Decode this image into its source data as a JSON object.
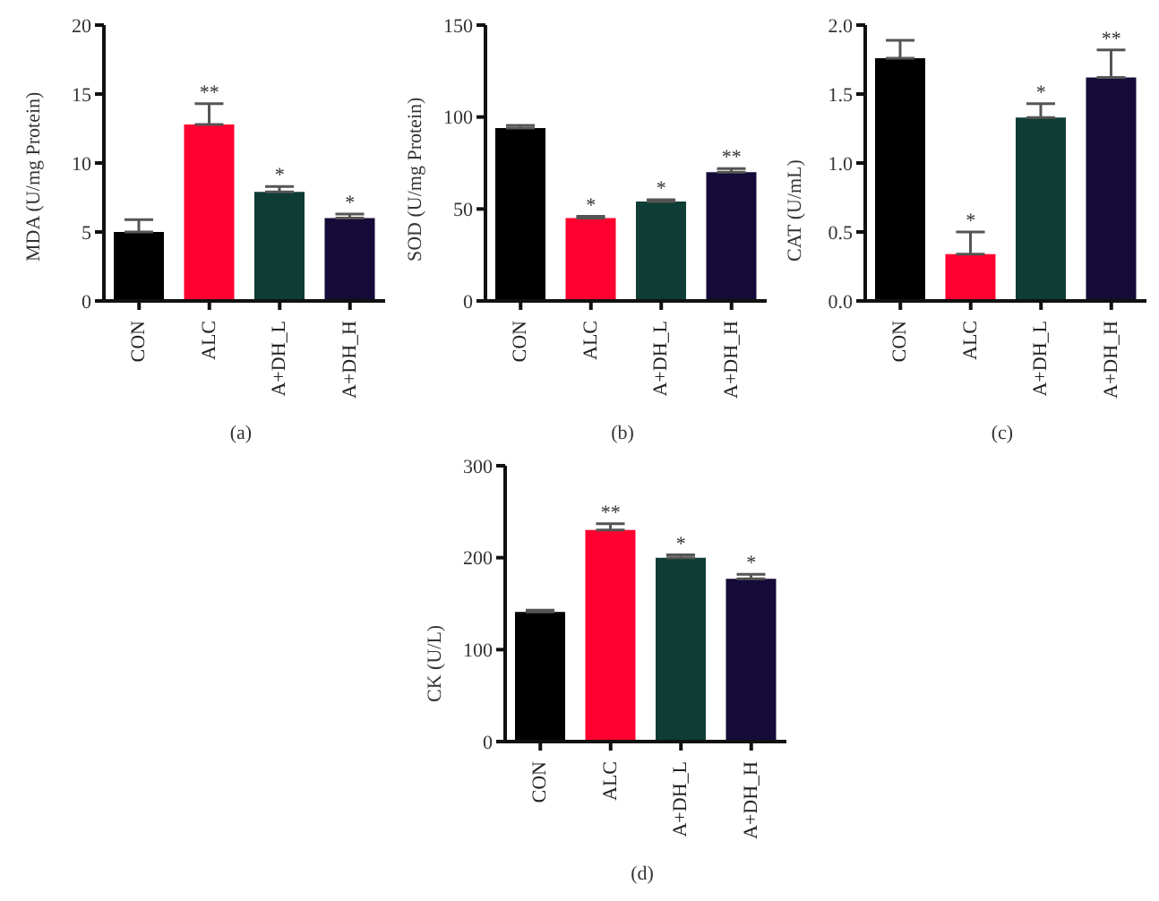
{
  "chart_data": [
    {
      "type": "bar",
      "ylabel": "MDA (U/mg Protein)",
      "categories": [
        "CON",
        "ALC",
        "A+DH_L",
        "A+DH_H"
      ],
      "values": [
        5.0,
        12.8,
        7.9,
        6.0
      ],
      "colors": [
        "#000000",
        "#ff0030",
        "#0d3d35",
        "#150a38"
      ],
      "errors": [
        [
          5.0,
          5.9
        ],
        [
          12.8,
          14.3
        ],
        [
          7.9,
          8.3
        ],
        [
          6.0,
          6.3
        ]
      ],
      "ylim": [
        0,
        20
      ],
      "yticks": [
        0,
        5,
        10,
        15,
        20
      ],
      "grid": false,
      "legend": false,
      "annotations": [
        {
          "text": "**",
          "x": "ALC",
          "y": 14.3
        },
        {
          "text": "*",
          "x": "A+DH_L",
          "y": 8.3
        },
        {
          "text": "*",
          "x": "A+DH_H",
          "y": 6.3
        },
        "(a)"
      ]
    },
    {
      "type": "bar",
      "ylabel": "SOD (U/mg Protein)",
      "categories": [
        "CON",
        "ALC",
        "A+DH_L",
        "A+DH_H"
      ],
      "values": [
        94,
        45,
        54,
        70
      ],
      "colors": [
        "#000000",
        "#ff0030",
        "#0d3d35",
        "#150a38"
      ],
      "errors": [
        [
          94,
          95.5
        ],
        [
          45,
          46
        ],
        [
          54,
          55
        ],
        [
          70,
          72
        ]
      ],
      "ylim": [
        0,
        150
      ],
      "yticks": [
        0,
        50,
        100,
        150
      ],
      "grid": false,
      "legend": false,
      "annotations": [
        {
          "text": "*",
          "x": "ALC",
          "y": 46
        },
        {
          "text": "*",
          "x": "A+DH_L",
          "y": 55
        },
        {
          "text": "**",
          "x": "A+DH_H",
          "y": 72
        },
        "(b)"
      ]
    },
    {
      "type": "bar",
      "ylabel": "CAT (U/mL)",
      "categories": [
        "CON",
        "ALC",
        "A+DH_L",
        "A+DH_H"
      ],
      "values": [
        1.76,
        0.34,
        1.33,
        1.62
      ],
      "colors": [
        "#000000",
        "#ff0030",
        "#0d3d35",
        "#150a38"
      ],
      "errors": [
        [
          1.76,
          1.89
        ],
        [
          0.34,
          0.5
        ],
        [
          1.33,
          1.43
        ],
        [
          1.62,
          1.82
        ]
      ],
      "ylim": [
        0,
        2
      ],
      "yticks": [
        {
          "value": 0,
          "label": "0.0"
        },
        {
          "value": 0.5,
          "label": "0.5"
        },
        {
          "value": 1,
          "label": "1.0"
        },
        {
          "value": 1.5,
          "label": "1.5"
        },
        {
          "value": 2,
          "label": "2.0"
        }
      ],
      "grid": false,
      "legend": false,
      "annotations": [
        {
          "text": "*",
          "x": "ALC",
          "y": 0.5
        },
        {
          "text": "*",
          "x": "A+DH_L",
          "y": 1.43
        },
        {
          "text": "**",
          "x": "A+DH_H",
          "y": 1.82
        },
        "(c)"
      ]
    },
    {
      "type": "bar",
      "ylabel": "CK (U/L)",
      "categories": [
        "CON",
        "ALC",
        "A+DH_L",
        "A+DH_H"
      ],
      "values": [
        141,
        230,
        200,
        177
      ],
      "colors": [
        "#000000",
        "#ff0030",
        "#0d3d35",
        "#150a38"
      ],
      "errors": [
        [
          141,
          143
        ],
        [
          230,
          237
        ],
        [
          200,
          203
        ],
        [
          177,
          182
        ]
      ],
      "ylim": [
        0,
        300
      ],
      "yticks": [
        0,
        100,
        200,
        300
      ],
      "grid": false,
      "legend": false,
      "annotations": [
        {
          "text": "**",
          "x": "ALC",
          "y": 237
        },
        {
          "text": "*",
          "x": "A+DH_L",
          "y": 203
        },
        {
          "text": "*",
          "x": "A+DH_H",
          "y": 182
        },
        "(d)"
      ]
    }
  ]
}
